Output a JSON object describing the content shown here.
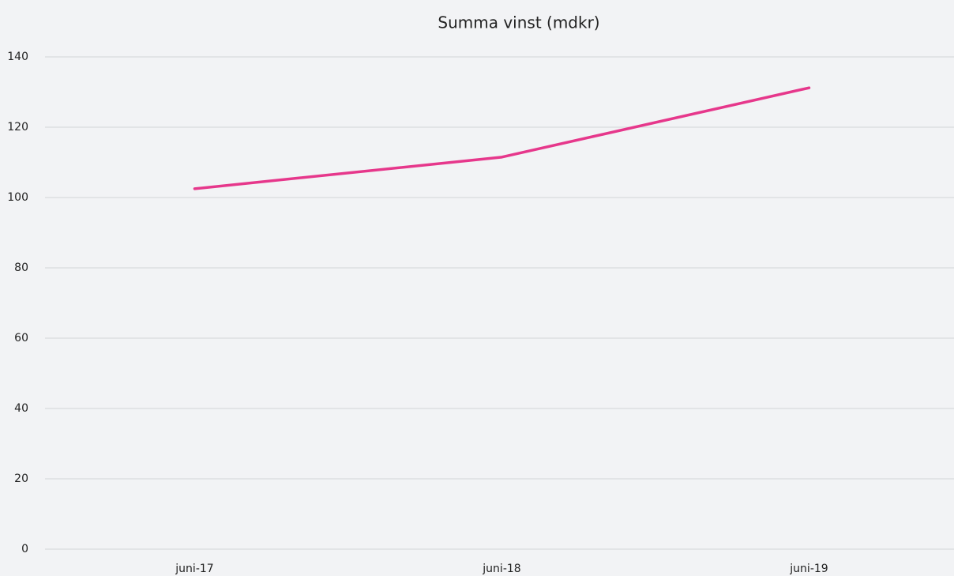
{
  "chart_data": {
    "type": "line",
    "title": "Summa vinst (mdkr)",
    "categories": [
      "juni-17",
      "juni-18",
      "juni-19"
    ],
    "values": [
      102.5,
      111.5,
      131.2
    ],
    "color": "#e6378b",
    "ylim": [
      0,
      140
    ],
    "yticks": [
      0,
      20,
      40,
      60,
      80,
      100,
      120,
      140
    ],
    "grid": true
  }
}
